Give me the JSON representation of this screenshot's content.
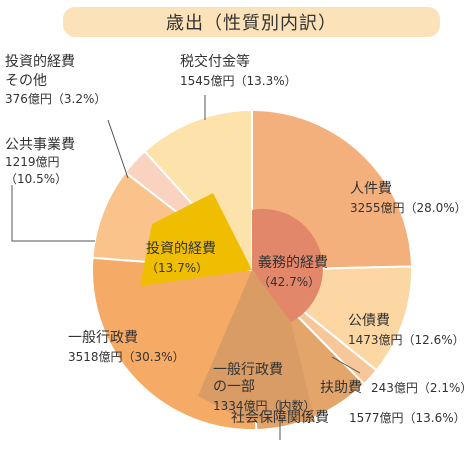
{
  "chart_data": {
    "type": "pie",
    "title": "歳出（性質別内訳）",
    "unit": "億円",
    "slices": [
      {
        "label": "人件費",
        "value": 3255,
        "percent": "28.0%",
        "amount_text": "3255億円（28.0%）",
        "color": "#f3b07c"
      },
      {
        "label": "公債費",
        "value": 1473,
        "percent": "12.6%",
        "amount_text": "1473億円（12.6%）",
        "color": "#fcd7a4"
      },
      {
        "label": "扶助費",
        "value": 243,
        "percent": "2.1%",
        "amount_text": "243億円（2.1%）",
        "color": "#f7c79a"
      },
      {
        "label": "社会保障関係費",
        "value": 1577,
        "percent": "13.6%",
        "amount_text": "1577億円（13.6%）",
        "color": "#e3a56a"
      },
      {
        "label": "一般行政費",
        "value": 3518,
        "percent": "30.3%",
        "amount_text": "3518億円（30.3%）",
        "color": "#f5aa66"
      },
      {
        "label": "公共事業費",
        "value": 1219,
        "percent": "10.5%",
        "amount_text": "1219億円（10.5%）",
        "color": "#fac38c"
      },
      {
        "label": "投資的経費その他",
        "value": 376,
        "percent": "3.2%",
        "amount_text": "376億円（3.2%）",
        "color": "#f9d3c0"
      },
      {
        "label": "税交付金等",
        "value": 1545,
        "percent": "13.3%",
        "amount_text": "1545億円（13.3%）",
        "color": "#fde3ab"
      }
    ],
    "inner_groups": [
      {
        "label": "義務的経費",
        "percent_text": "（42.7%）",
        "color": "#e2876a"
      },
      {
        "label": "投資的経費",
        "percent_text": "（13.7%）",
        "color": "#efbe00"
      },
      {
        "label": "一般行政費の一部",
        "amount_text": "1334億円（内数）",
        "color": "#d89c64"
      }
    ]
  },
  "labels": {
    "jinkenhi": {
      "name": "人件費",
      "amount": "3255億円（28.0%）"
    },
    "kosaihi": {
      "name": "公債費",
      "amount": "1473億円（12.6%）"
    },
    "fujohi": {
      "name": "扶助費",
      "amount": "243億円（2.1%）"
    },
    "shakaihosho": {
      "name": "社会保障関係費",
      "amount": "1577億円（13.6%）"
    },
    "ippan": {
      "name": "一般行政費",
      "amount": "3518億円（30.3%）"
    },
    "kokyo": {
      "name": "公共事業費",
      "amount1": "1219億円",
      "amount2": "（10.5%）"
    },
    "toshi_sonota": {
      "name1": "投資的経費",
      "name2": "その他",
      "amount": "376億円（3.2%）"
    },
    "zeikofu": {
      "name": "税交付金等",
      "amount": "1545億円（13.3%）"
    },
    "gimu": {
      "name": "義務的経費",
      "pct": "（42.7%）"
    },
    "toshi": {
      "name": "投資的経費",
      "pct": "（13.7%）"
    },
    "ippan_part": {
      "name1": "一般行政費",
      "name2": "の一部",
      "amount": "1334億円（内数）"
    }
  }
}
